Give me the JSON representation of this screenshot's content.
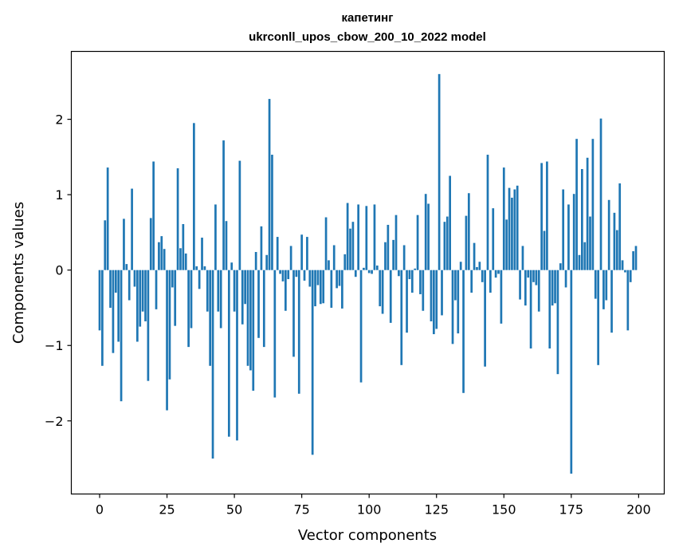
{
  "chart_data": {
    "type": "bar",
    "title": "капетинг",
    "subtitle": "ukrconll_upos_cbow_200_10_2022 model",
    "xlabel": "Vector components",
    "ylabel": "Components values",
    "xlim": [
      -10.5,
      209.5
    ],
    "ylim": [
      -2.97,
      2.9
    ],
    "xticks": [
      0,
      25,
      50,
      75,
      100,
      125,
      150,
      175,
      200
    ],
    "xtick_labels": [
      "0",
      "25",
      "50",
      "75",
      "100",
      "125",
      "150",
      "175",
      "200"
    ],
    "yticks": [
      -2,
      -1,
      0,
      1,
      2
    ],
    "ytick_labels": [
      "−2",
      "−1",
      "0",
      "1",
      "2"
    ],
    "grid": false,
    "bar_color": "#1f77b4",
    "x": [
      0,
      1,
      2,
      3,
      4,
      5,
      6,
      7,
      8,
      9,
      10,
      11,
      12,
      13,
      14,
      15,
      16,
      17,
      18,
      19,
      20,
      21,
      22,
      23,
      24,
      25,
      26,
      27,
      28,
      29,
      30,
      31,
      32,
      33,
      34,
      35,
      36,
      37,
      38,
      39,
      40,
      41,
      42,
      43,
      44,
      45,
      46,
      47,
      48,
      49,
      50,
      51,
      52,
      53,
      54,
      55,
      56,
      57,
      58,
      59,
      60,
      61,
      62,
      63,
      64,
      65,
      66,
      67,
      68,
      69,
      70,
      71,
      72,
      73,
      74,
      75,
      76,
      77,
      78,
      79,
      80,
      81,
      82,
      83,
      84,
      85,
      86,
      87,
      88,
      89,
      90,
      91,
      92,
      93,
      94,
      95,
      96,
      97,
      98,
      99,
      100,
      101,
      102,
      103,
      104,
      105,
      106,
      107,
      108,
      109,
      110,
      111,
      112,
      113,
      114,
      115,
      116,
      117,
      118,
      119,
      120,
      121,
      122,
      123,
      124,
      125,
      126,
      127,
      128,
      129,
      130,
      131,
      132,
      133,
      134,
      135,
      136,
      137,
      138,
      139,
      140,
      141,
      142,
      143,
      144,
      145,
      146,
      147,
      148,
      149,
      150,
      151,
      152,
      153,
      154,
      155,
      156,
      157,
      158,
      159,
      160,
      161,
      162,
      163,
      164,
      165,
      166,
      167,
      168,
      169,
      170,
      171,
      172,
      173,
      174,
      175,
      176,
      177,
      178,
      179,
      180,
      181,
      182,
      183,
      184,
      185,
      186,
      187,
      188,
      189,
      190,
      191,
      192,
      193,
      194,
      195,
      196,
      197,
      198,
      199
    ],
    "values": [
      -0.8,
      -1.27,
      0.66,
      1.36,
      -0.5,
      -1.1,
      -0.3,
      -0.95,
      -1.74,
      0.68,
      0.08,
      -0.4,
      1.08,
      -0.22,
      -0.95,
      -0.75,
      -0.55,
      -0.68,
      -1.47,
      0.69,
      1.44,
      -0.52,
      0.37,
      0.45,
      0.28,
      -1.86,
      -1.45,
      -0.23,
      -0.74,
      1.35,
      0.29,
      0.61,
      0.22,
      -1.02,
      -0.77,
      1.95,
      0.05,
      -0.25,
      0.43,
      0.05,
      -0.55,
      -1.27,
      -2.5,
      0.87,
      -0.55,
      -0.77,
      1.72,
      0.65,
      -2.21,
      0.1,
      -0.55,
      -2.26,
      1.45,
      -0.72,
      -0.45,
      -1.27,
      -1.33,
      -1.6,
      0.24,
      -0.9,
      0.58,
      -1.02,
      0.2,
      2.27,
      1.53,
      -1.69,
      0.44,
      -0.05,
      -0.15,
      -0.54,
      -0.12,
      0.32,
      -1.15,
      -0.09,
      -1.64,
      0.47,
      -0.14,
      0.44,
      -0.22,
      -2.45,
      -0.48,
      -0.2,
      -0.45,
      -0.44,
      0.7,
      0.13,
      -0.5,
      0.33,
      -0.24,
      -0.21,
      -0.51,
      0.21,
      0.89,
      0.55,
      0.64,
      -0.09,
      0.87,
      -1.49,
      0.03,
      0.85,
      -0.04,
      -0.05,
      0.87,
      0.06,
      -0.48,
      -0.58,
      0.37,
      0.6,
      -0.7,
      0.4,
      0.73,
      -0.08,
      -1.26,
      0.33,
      -0.83,
      -0.12,
      -0.3,
      0.02,
      0.73,
      -0.32,
      -0.54,
      1.01,
      0.88,
      -0.68,
      -0.85,
      -0.78,
      2.6,
      -0.6,
      0.64,
      0.71,
      1.25,
      -0.98,
      -0.4,
      -0.84,
      0.11,
      -1.63,
      0.72,
      1.02,
      -0.3,
      0.36,
      0.04,
      0.11,
      -0.16,
      -1.28,
      1.53,
      -0.3,
      0.82,
      -0.1,
      -0.05,
      -0.71,
      1.36,
      0.67,
      1.09,
      0.96,
      1.07,
      1.12,
      -0.39,
      0.32,
      -0.47,
      -0.1,
      -1.04,
      -0.16,
      -0.2,
      -0.55,
      1.42,
      0.52,
      1.44,
      -1.04,
      -0.47,
      -0.44,
      -1.38,
      0.09,
      1.07,
      -0.23,
      0.87,
      -2.7,
      1.01,
      1.74,
      0.2,
      1.34,
      0.37,
      1.49,
      0.71,
      1.74,
      -0.38,
      -1.26,
      2.01,
      -0.52,
      -0.4,
      0.93,
      -0.83,
      0.76,
      0.53,
      1.15,
      0.13,
      -0.03,
      -0.8,
      -0.16,
      0.25,
      0.32
    ]
  }
}
